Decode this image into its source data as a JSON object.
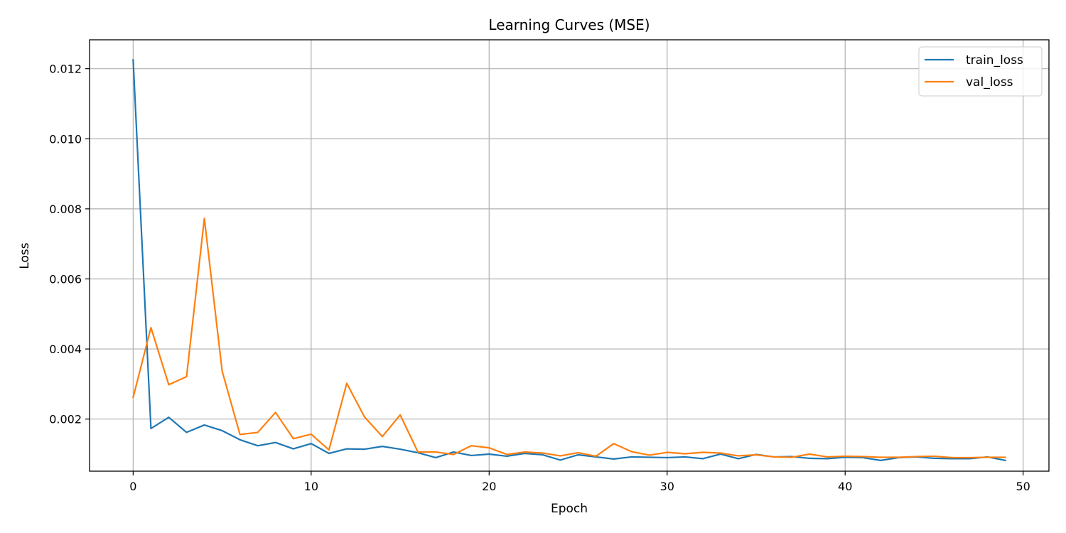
{
  "chart_data": {
    "type": "line",
    "title": "Learning Curves (MSE)",
    "xlabel": "Epoch",
    "ylabel": "Loss",
    "xlim": [
      -2.45,
      51.45
    ],
    "ylim": [
      0.000513,
      0.012825
    ],
    "xticks": [
      0,
      10,
      20,
      30,
      40,
      50
    ],
    "xtick_labels": [
      "0",
      "10",
      "20",
      "30",
      "40",
      "50"
    ],
    "yticks": [
      0.002,
      0.004,
      0.006,
      0.008,
      0.01,
      0.012
    ],
    "ytick_labels": [
      "0.002",
      "0.004",
      "0.006",
      "0.008",
      "0.010",
      "0.012"
    ],
    "grid": true,
    "legend_position": "upper-right",
    "x": [
      0,
      1,
      2,
      3,
      4,
      5,
      6,
      7,
      8,
      9,
      10,
      11,
      12,
      13,
      14,
      15,
      16,
      17,
      18,
      19,
      20,
      21,
      22,
      23,
      24,
      25,
      26,
      27,
      28,
      29,
      30,
      31,
      32,
      33,
      34,
      35,
      36,
      37,
      38,
      39,
      40,
      41,
      42,
      43,
      44,
      45,
      46,
      47,
      48,
      49
    ],
    "series": [
      {
        "name": "train_loss",
        "color": "#1f77b4",
        "values": [
          0.01225,
          0.00173,
          0.00205,
          0.00162,
          0.00183,
          0.00167,
          0.00141,
          0.00124,
          0.00133,
          0.00115,
          0.0013,
          0.00102,
          0.00115,
          0.00114,
          0.00122,
          0.00114,
          0.00104,
          0.0009,
          0.00106,
          0.00096,
          0.001,
          0.00094,
          0.00102,
          0.00098,
          0.00083,
          0.00098,
          0.00092,
          0.00086,
          0.00092,
          0.00091,
          0.0009,
          0.00092,
          0.00087,
          0.001,
          0.00087,
          0.00099,
          0.00092,
          0.00093,
          0.00088,
          0.00087,
          0.00091,
          0.0009,
          0.00082,
          0.0009,
          0.00092,
          0.00088,
          0.00087,
          0.00087,
          0.00092,
          0.00082
        ]
      },
      {
        "name": "val_loss",
        "color": "#ff7f0e",
        "values": [
          0.00262,
          0.00461,
          0.00298,
          0.00321,
          0.00773,
          0.00337,
          0.00156,
          0.00162,
          0.00219,
          0.00144,
          0.00157,
          0.00112,
          0.00302,
          0.00206,
          0.0015,
          0.00212,
          0.00106,
          0.00106,
          0.00099,
          0.00124,
          0.00118,
          0.00099,
          0.00106,
          0.00103,
          0.00095,
          0.00104,
          0.00094,
          0.0013,
          0.00107,
          0.00097,
          0.00105,
          0.00101,
          0.00105,
          0.00103,
          0.00095,
          0.00098,
          0.00092,
          0.00091,
          0.001,
          0.00092,
          0.00094,
          0.00093,
          0.00091,
          0.00091,
          0.00093,
          0.00094,
          0.0009,
          0.0009,
          0.00091,
          0.00091
        ]
      }
    ]
  }
}
